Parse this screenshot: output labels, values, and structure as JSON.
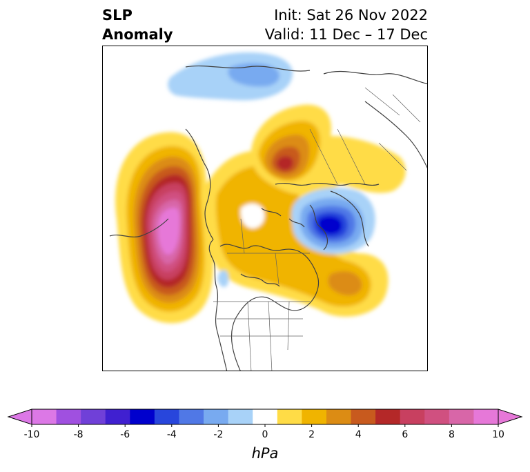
{
  "title": {
    "left_line1": "SLP",
    "left_line2": "Anomaly",
    "right_line1": "Init: Sat 26 Nov 2022",
    "right_line2": "Valid: 11 Dec – 17 Dec"
  },
  "colorbar": {
    "unit": "hPa",
    "ticks": [
      "-10",
      "-8",
      "-6",
      "-4",
      "-2",
      "0",
      "2",
      "4",
      "6",
      "8",
      "10"
    ],
    "levels": [
      -10,
      -9,
      -8,
      -7,
      -6,
      -5,
      -4,
      -3,
      -2,
      -1,
      1,
      2,
      3,
      4,
      5,
      6,
      7,
      8,
      9,
      10
    ],
    "colors": [
      "#dc78e6",
      "#a050e0",
      "#7040d8",
      "#4020d0",
      "#0000cd",
      "#2846dc",
      "#5078e6",
      "#78aaf0",
      "#a8d2f8",
      "#ffffff",
      "#ffdc46",
      "#f0b400",
      "#dc8c14",
      "#c85a1e",
      "#b42828",
      "#c84060",
      "#d05080",
      "#d866a8",
      "#e678d8"
    ],
    "extend_min_color": "#dc78e6",
    "extend_max_color": "#e678d8"
  },
  "map": {
    "projection": "north-polar-stereographic",
    "field": "sea level pressure anomaly",
    "features": [
      {
        "region": "Gulf of Alaska / NE Pacific",
        "sign": "positive",
        "peak_hPa": 10
      },
      {
        "region": "Northern Europe / Scandinavia",
        "sign": "negative",
        "peak_hPa": -6
      },
      {
        "region": "Eastern Siberia / East Asia",
        "sign": "negative",
        "peak_hPa": -4
      },
      {
        "region": "Greenland / Canadian Arctic",
        "sign": "positive",
        "peak_hPa": 4
      },
      {
        "region": "Central Siberia",
        "sign": "positive",
        "peak_hPa": 5
      },
      {
        "region": "North Atlantic",
        "sign": "positive",
        "peak_hPa": 4
      }
    ]
  }
}
